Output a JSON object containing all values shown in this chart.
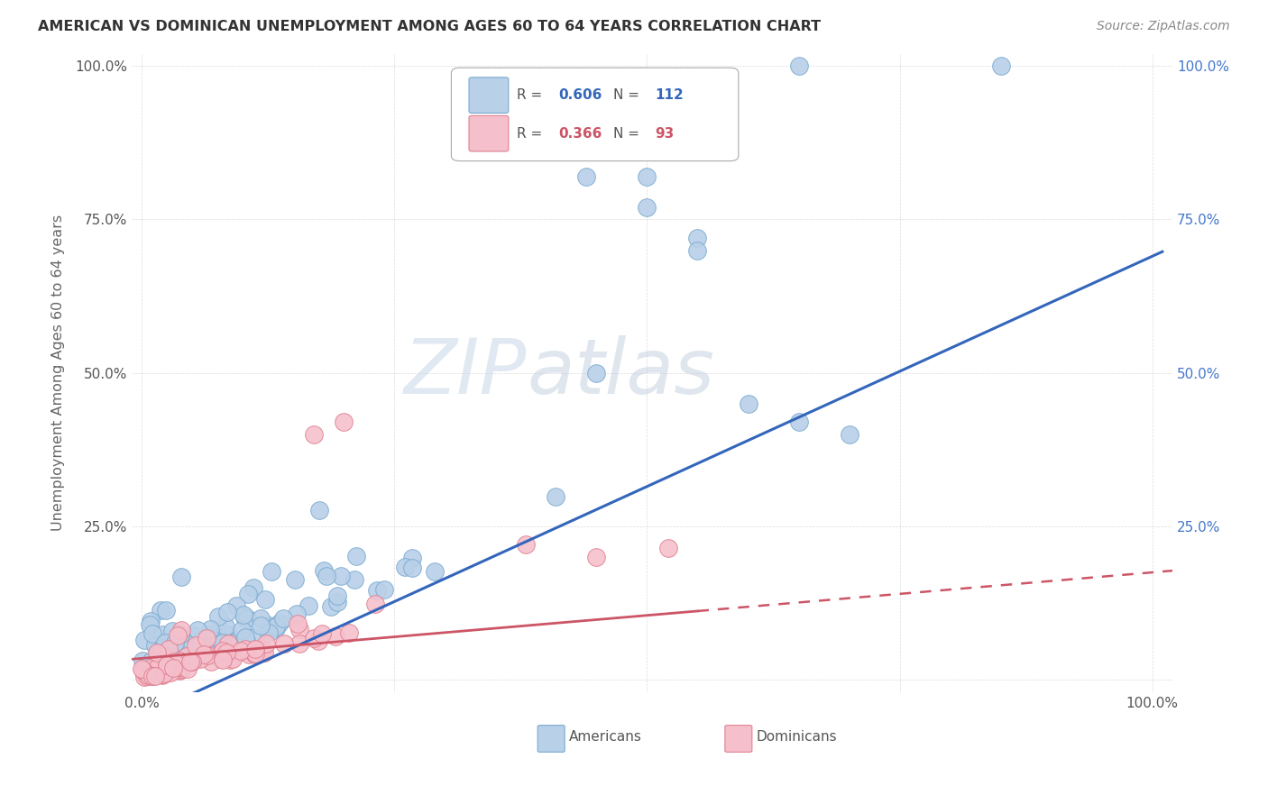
{
  "title": "AMERICAN VS DOMINICAN UNEMPLOYMENT AMONG AGES 60 TO 64 YEARS CORRELATION CHART",
  "source": "Source: ZipAtlas.com",
  "ylabel": "Unemployment Among Ages 60 to 64 years",
  "xlim": [
    0.0,
    1.0
  ],
  "ylim": [
    0.0,
    1.0
  ],
  "americans_R": 0.606,
  "americans_N": 112,
  "dominicans_R": 0.366,
  "dominicans_N": 93,
  "american_color": "#b8d0e8",
  "american_edge_color": "#7aaad0",
  "dominican_color": "#f5c0cc",
  "dominican_edge_color": "#e08090",
  "regression_american_color": "#3366bb",
  "regression_dominican_color": "#cc5566",
  "watermark_zip": "ZIP",
  "watermark_atlas": "atlas",
  "background_color": "#ffffff",
  "seed": 12345,
  "reg_am_slope": 0.75,
  "reg_am_intercept": -0.06,
  "reg_do_slope": 0.14,
  "reg_do_intercept": 0.035,
  "right_tick_color": "#4477cc"
}
